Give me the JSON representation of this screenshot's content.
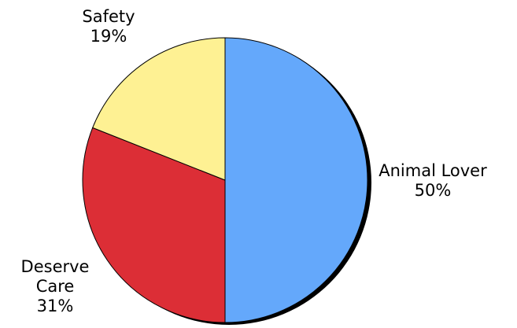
{
  "chart_data": {
    "type": "pie",
    "title": "",
    "slices": [
      {
        "label": [
          "Animal Lover"
        ],
        "value": 50,
        "percent_label": "50%",
        "color": "#64a8fb"
      },
      {
        "label": [
          "Deserve",
          "Care"
        ],
        "value": 31,
        "percent_label": "31%",
        "color": "#dc2e36"
      },
      {
        "label": [
          "Safety"
        ],
        "value": 19,
        "percent_label": "19%",
        "color": "#fef193"
      }
    ],
    "legend": "none",
    "shadow_color": "#000000",
    "start": "top",
    "direction": "clockwise"
  }
}
